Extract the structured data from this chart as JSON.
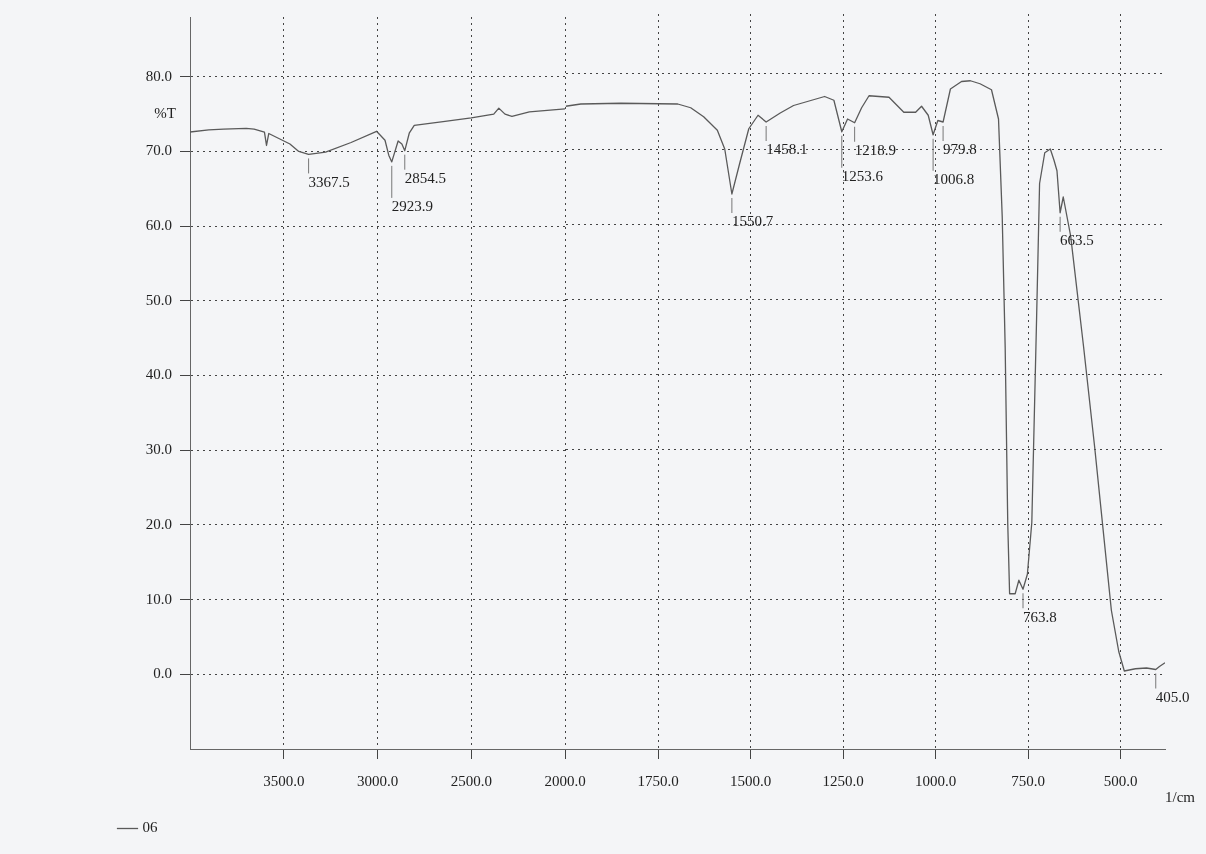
{
  "chart_data": [
    {
      "type": "line",
      "ylabel": "%T",
      "xlim": [
        4000,
        2000
      ],
      "xticks": [
        {
          "value": 3500,
          "label": "3500.0"
        },
        {
          "value": 3000,
          "label": "3000.0"
        },
        {
          "value": 2500,
          "label": "2500.0"
        },
        {
          "value": 2000,
          "label": "2000.0"
        }
      ],
      "ylim": [
        -10,
        88
      ],
      "yticks": [
        {
          "value": 0,
          "label": "0.0"
        },
        {
          "value": 10,
          "label": "10.0"
        },
        {
          "value": 20,
          "label": "20.0"
        },
        {
          "value": 30,
          "label": "30.0"
        },
        {
          "value": 40,
          "label": "40.0"
        },
        {
          "value": 50,
          "label": "50.0"
        },
        {
          "value": 60,
          "label": "60.0"
        },
        {
          "value": 70,
          "label": "70.0"
        },
        {
          "value": 80,
          "label": "80.0"
        }
      ],
      "grid": true,
      "legend": "bottom left",
      "series": [
        {
          "name": "06",
          "color": "#5a5a5a",
          "x": [
            4000,
            3900,
            3821,
            3700,
            3658,
            3603,
            3592,
            3580,
            3467,
            3420,
            3367.5,
            3277,
            3141,
            3005,
            2960,
            2940,
            2923.9,
            2890,
            2870,
            2854.5,
            2830,
            2804,
            2650,
            2500,
            2380,
            2353,
            2320,
            2283,
            2190,
            2000
          ],
          "values": [
            72.6,
            72.9,
            73.0,
            73.1,
            73.0,
            72.6,
            70.8,
            72.4,
            71.0,
            70.0,
            69.6,
            69.9,
            71.2,
            72.7,
            71.5,
            69.5,
            68.6,
            71.4,
            71.0,
            70.1,
            72.5,
            73.5,
            74.0,
            74.5,
            75.0,
            75.8,
            75.0,
            74.7,
            75.3,
            75.7
          ]
        }
      ],
      "annotations": [
        {
          "text": "3367.5",
          "x": 3367.5,
          "y": 69.6
        },
        {
          "text": "2923.9",
          "x": 2923.9,
          "y": 68.6
        },
        {
          "text": "2854.5",
          "x": 2854.5,
          "y": 70.1
        }
      ]
    },
    {
      "type": "line",
      "xlabel": "1/cm",
      "xlim": [
        2000,
        380
      ],
      "xticks": [
        {
          "value": 1750,
          "label": "1750.0"
        },
        {
          "value": 1500,
          "label": "1500.0"
        },
        {
          "value": 1250,
          "label": "1250.0"
        },
        {
          "value": 1000,
          "label": "1000.0"
        },
        {
          "value": 750,
          "label": "750.0"
        },
        {
          "value": 500,
          "label": "500.0"
        }
      ],
      "ylim": [
        -10,
        88
      ],
      "yticks": [
        0,
        10,
        20,
        30,
        40,
        50,
        60,
        70,
        80
      ],
      "tick_labels": "x",
      "grid": true,
      "series": [
        {
          "color": "#5a5a5a",
          "x": [
            2000,
            1959,
            1851,
            1697,
            1662,
            1627,
            1590,
            1570,
            1550.7,
            1530,
            1505,
            1480,
            1458.1,
            1420,
            1384,
            1300,
            1275,
            1253.6,
            1238,
            1218.9,
            1200,
            1180,
            1126,
            1086,
            1054,
            1038,
            1020,
            1006.8,
            994,
            979.8,
            960,
            930,
            906,
            880,
            849,
            830,
            820,
            812,
            805,
            800,
            785,
            775,
            763.8,
            752,
            740,
            727,
            719,
            705,
            690,
            680,
            672,
            663.5,
            655,
            635,
            600,
            570,
            525,
            505,
            490,
            460,
            430,
            405,
            395,
            380
          ],
          "values": [
            75.7,
            76.0,
            76.1,
            76.0,
            75.5,
            74.3,
            72.5,
            70.0,
            64.0,
            68.0,
            72.7,
            74.5,
            73.6,
            74.8,
            75.8,
            77.0,
            76.5,
            72.3,
            74.0,
            73.5,
            75.5,
            77.1,
            76.9,
            74.9,
            74.9,
            75.7,
            74.5,
            71.9,
            73.8,
            73.6,
            78.0,
            79.0,
            79.1,
            78.7,
            77.9,
            74.0,
            61.0,
            43.6,
            20.0,
            10.7,
            10.7,
            12.5,
            11.3,
            13.3,
            20.2,
            47.6,
            65.4,
            69.5,
            70.0,
            68.5,
            67.1,
            61.5,
            63.6,
            58.4,
            43.6,
            30.2,
            8.5,
            3.0,
            0.4,
            0.7,
            0.8,
            0.6,
            1.0,
            1.5
          ]
        }
      ],
      "annotations": [
        {
          "text": "1550.7",
          "x": 1550.7,
          "y": 64.0
        },
        {
          "text": "1458.1",
          "x": 1458.1,
          "y": 73.6
        },
        {
          "text": "1253.6",
          "x": 1253.6,
          "y": 72.3
        },
        {
          "text": "1218.9",
          "x": 1218.9,
          "y": 73.5
        },
        {
          "text": "1006.8",
          "x": 1006.8,
          "y": 71.9
        },
        {
          "text": "979.8",
          "x": 979.8,
          "y": 73.6
        },
        {
          "text": "763.8",
          "x": 763.8,
          "y": 11.3
        },
        {
          "text": "663.5",
          "x": 663.5,
          "y": 61.5
        },
        {
          "text": "405.0",
          "x": 405,
          "y": 0.6
        }
      ]
    }
  ]
}
